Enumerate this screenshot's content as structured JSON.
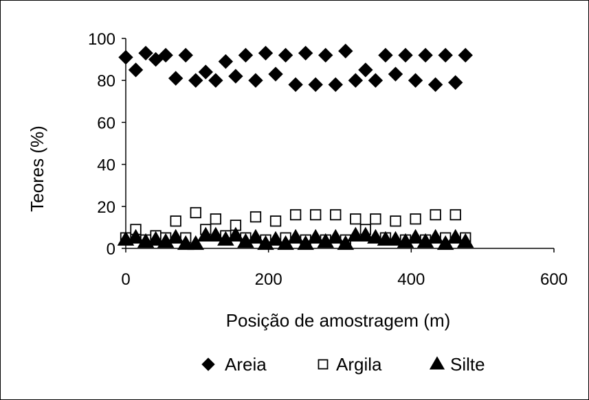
{
  "chart_data": {
    "type": "scatter",
    "xlabel": "Posição de amostragem (m)",
    "ylabel": "Teores (%)",
    "xlim": [
      0,
      600
    ],
    "ylim": [
      0,
      100
    ],
    "xticks": [
      "0",
      "200",
      "400",
      "600"
    ],
    "yticks": [
      "0",
      "20",
      "40",
      "60",
      "80",
      "100"
    ],
    "legend_position": "bottom",
    "grid": false,
    "series": [
      {
        "name": "Areia",
        "marker": "diamond-filled",
        "color": "#000000",
        "points": [
          [
            0,
            91
          ],
          [
            14,
            85
          ],
          [
            28,
            93
          ],
          [
            42,
            90
          ],
          [
            56,
            92
          ],
          [
            70,
            81
          ],
          [
            84,
            92
          ],
          [
            98,
            80
          ],
          [
            112,
            84
          ],
          [
            126,
            80
          ],
          [
            140,
            89
          ],
          [
            154,
            82
          ],
          [
            168,
            92
          ],
          [
            182,
            80
          ],
          [
            196,
            93
          ],
          [
            210,
            83
          ],
          [
            224,
            92
          ],
          [
            238,
            78
          ],
          [
            252,
            93
          ],
          [
            266,
            78
          ],
          [
            280,
            92
          ],
          [
            294,
            78
          ],
          [
            308,
            94
          ],
          [
            322,
            80
          ],
          [
            336,
            85
          ],
          [
            350,
            80
          ],
          [
            364,
            92
          ],
          [
            378,
            83
          ],
          [
            392,
            92
          ],
          [
            406,
            80
          ],
          [
            420,
            92
          ],
          [
            434,
            78
          ],
          [
            448,
            92
          ],
          [
            462,
            79
          ],
          [
            476,
            92
          ]
        ]
      },
      {
        "name": "Argila",
        "marker": "square-open",
        "color": "#000000",
        "points": [
          [
            0,
            5
          ],
          [
            14,
            9
          ],
          [
            28,
            4
          ],
          [
            42,
            6
          ],
          [
            56,
            5
          ],
          [
            70,
            13
          ],
          [
            84,
            5
          ],
          [
            98,
            17
          ],
          [
            112,
            9
          ],
          [
            126,
            14
          ],
          [
            140,
            6
          ],
          [
            154,
            11
          ],
          [
            168,
            5
          ],
          [
            182,
            15
          ],
          [
            196,
            4
          ],
          [
            210,
            13
          ],
          [
            224,
            5
          ],
          [
            238,
            16
          ],
          [
            252,
            4
          ],
          [
            266,
            16
          ],
          [
            280,
            4
          ],
          [
            294,
            16
          ],
          [
            308,
            4
          ],
          [
            322,
            14
          ],
          [
            336,
            9
          ],
          [
            350,
            14
          ],
          [
            364,
            5
          ],
          [
            378,
            13
          ],
          [
            392,
            4
          ],
          [
            406,
            14
          ],
          [
            420,
            4
          ],
          [
            434,
            16
          ],
          [
            448,
            5
          ],
          [
            462,
            16
          ],
          [
            476,
            5
          ]
        ]
      },
      {
        "name": "Silte",
        "marker": "triangle-filled",
        "color": "#000000",
        "points": [
          [
            0,
            4
          ],
          [
            14,
            5
          ],
          [
            28,
            3
          ],
          [
            42,
            4
          ],
          [
            56,
            3
          ],
          [
            70,
            5
          ],
          [
            84,
            2
          ],
          [
            98,
            2
          ],
          [
            112,
            6
          ],
          [
            126,
            6
          ],
          [
            140,
            4
          ],
          [
            154,
            6
          ],
          [
            168,
            3
          ],
          [
            182,
            5
          ],
          [
            196,
            2
          ],
          [
            210,
            4
          ],
          [
            224,
            2
          ],
          [
            238,
            5
          ],
          [
            252,
            2
          ],
          [
            266,
            5
          ],
          [
            280,
            3
          ],
          [
            294,
            5
          ],
          [
            308,
            2
          ],
          [
            322,
            6
          ],
          [
            336,
            6
          ],
          [
            350,
            5
          ],
          [
            364,
            4
          ],
          [
            378,
            4
          ],
          [
            392,
            3
          ],
          [
            406,
            5
          ],
          [
            420,
            3
          ],
          [
            434,
            5
          ],
          [
            448,
            2
          ],
          [
            462,
            5
          ],
          [
            476,
            3
          ]
        ]
      }
    ]
  }
}
